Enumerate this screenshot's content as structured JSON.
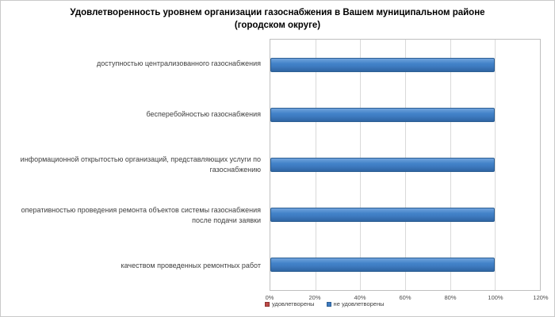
{
  "frame": {
    "background": "#FFFFFF",
    "border_color": "#C9C9C9"
  },
  "chart_data": {
    "type": "bar",
    "orientation": "horizontal",
    "title": "Удовлетворенность уровнем организации газоснабжения в Вашем муниципальном районе (городском округе)",
    "categories": [
      "доступностью централизованного газоснабжения",
      "бесперебойностью газоснабжения",
      "информационной открытостью организаций, представляющих услуги по газоснабжению",
      "оперативностью проведения ремонта объектов системы газоснабжения после подачи заявки",
      "качеством проведенных ремонтных работ"
    ],
    "series": [
      {
        "name": "удовлетворены",
        "color": "#BE4B48",
        "border_color": "#8E3432",
        "values": [
          0,
          0,
          0,
          0,
          0
        ]
      },
      {
        "name": "не удовлетворены",
        "color": "#3E7BC1",
        "border_color": "#2D5F93",
        "values": [
          100,
          100,
          100,
          100,
          100
        ]
      }
    ],
    "x_ticks": [
      "0%",
      "20%",
      "40%",
      "60%",
      "80%",
      "100%",
      "120%"
    ],
    "xlim": [
      0,
      120
    ],
    "x_tick_step": 20,
    "grid": "vertical",
    "gridline_color": "#D9D9D9",
    "plot_border_color": "#BFBFBF",
    "bar_gradient": [
      "#6FA3DC",
      "#4282C8",
      "#3E7BC1",
      "#2F65A3"
    ],
    "legend_position": "bottom",
    "ylabel": "",
    "xlabel": ""
  }
}
